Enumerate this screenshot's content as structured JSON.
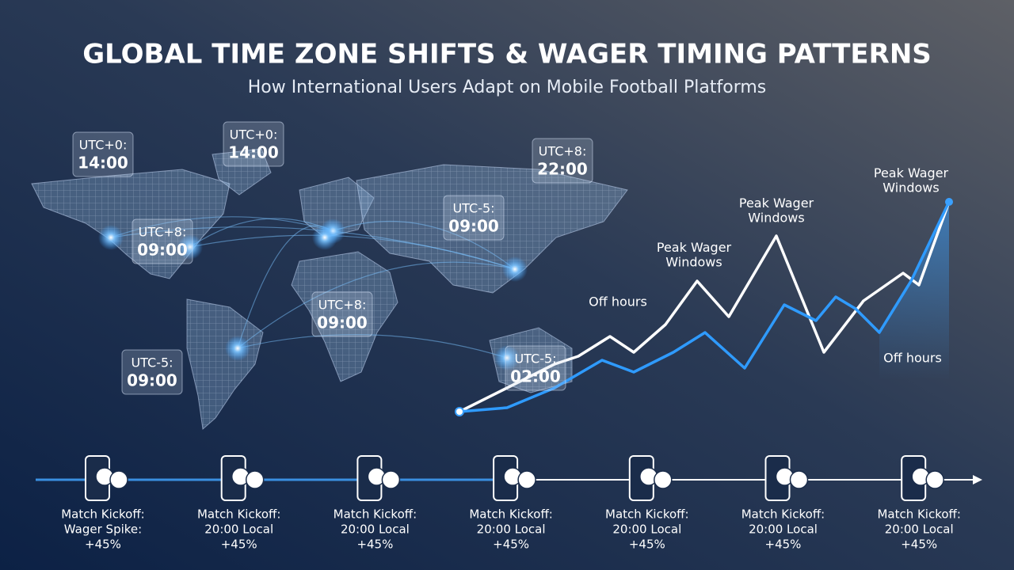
{
  "header": {
    "title": "GLOBAL TIME ZONE SHIFTS & WAGER TIMING PATTERNS",
    "subtitle": "How International Users Adapt on Mobile Football Platforms"
  },
  "time_labels": [
    {
      "zone": "UTC+0:",
      "time": "14:00"
    },
    {
      "zone": "UTC+0:",
      "time": "14:00"
    },
    {
      "zone": "UTC+8:",
      "time": "22:00"
    },
    {
      "zone": "UTC-5:",
      "time": "09:00"
    },
    {
      "zone": "UTC+8:",
      "time": "09:00"
    },
    {
      "zone": "UTC+8:",
      "time": "09:00"
    },
    {
      "zone": "UTC-5:",
      "time": "09:00"
    },
    {
      "zone": "UTC-5:",
      "time": "02:00"
    }
  ],
  "chart_annotations": [
    "Peak Wager Windows",
    "Peak Wager Windows",
    "Peak Wager Windows",
    "Off hours",
    "Off hours"
  ],
  "timeline": [
    [
      "Match Kickoff:",
      "Wager Spike:",
      "+45%"
    ],
    [
      "Match Kickoff:",
      "20:00 Local",
      "+45%"
    ],
    [
      "Match Kickoff:",
      "20:00 Local",
      "+45%"
    ],
    [
      "Match Kickoff:",
      "20:00 Local",
      "+45%"
    ],
    [
      "Match Kickoff:",
      "20:00 Local",
      "+45%"
    ],
    [
      "Match Kickoff:",
      "20:00 Local",
      "+45%"
    ],
    [
      "Match Kickoff:",
      "20:00 Local",
      "+45%"
    ]
  ]
}
